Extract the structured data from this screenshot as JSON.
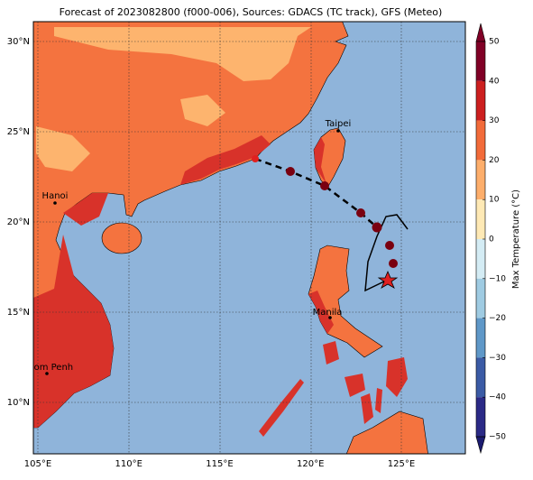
{
  "title": "Forecast of 2023082800 (f000-006), Sources: GDACS (TC track), GFS (Meteo)",
  "longitude_labels": [
    "105°E",
    "110°E",
    "115°E",
    "120°E",
    "125°E"
  ],
  "latitude_labels": [
    "30°N",
    "25°N",
    "20°N",
    "15°N",
    "10°N"
  ],
  "cities": [
    "Taipei",
    "Hanoi",
    "Manila",
    "Phnom Penh"
  ],
  "colorbar": {
    "label": "Max Temperature (°C)",
    "ticks": [
      "50",
      "40",
      "30",
      "20",
      "10",
      "0",
      "−10",
      "−20",
      "−30",
      "−40",
      "−50"
    ]
  }
}
